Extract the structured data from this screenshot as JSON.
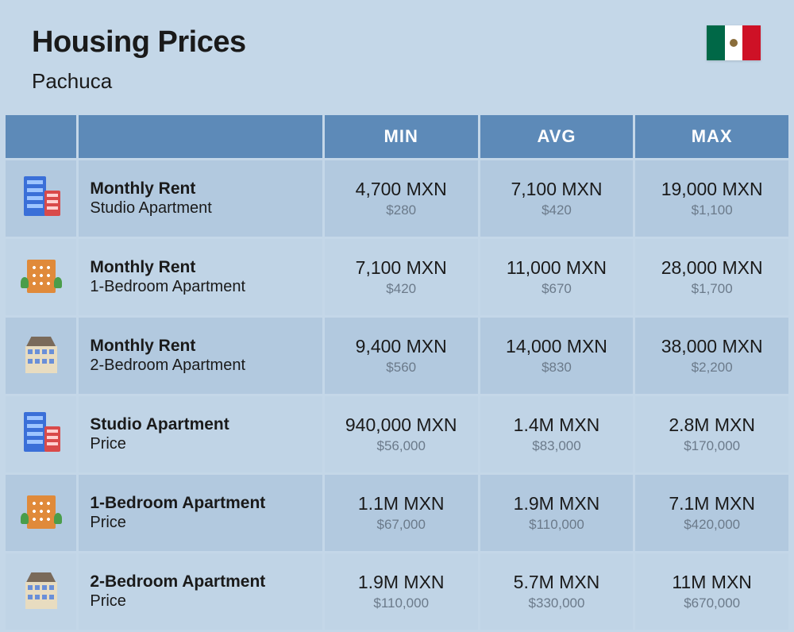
{
  "page": {
    "title": "Housing Prices",
    "subtitle": "Pachuca",
    "country_flag": "mexico",
    "background_color": "#c4d7e8"
  },
  "table": {
    "header_bg": "#5d8ab8",
    "header_text_color": "#ffffff",
    "row_bg_a": "#b2c9df",
    "row_bg_b": "#c0d4e6",
    "primary_text_color": "#1a1a1a",
    "secondary_text_color": "#6b7a8a",
    "col_headers": {
      "min": "MIN",
      "avg": "AVG",
      "max": "MAX"
    },
    "rows": [
      {
        "icon": "studio",
        "label_bold": "Monthly Rent",
        "label_sub": "Studio Apartment",
        "min": {
          "mxn": "4,700 MXN",
          "usd": "$280"
        },
        "avg": {
          "mxn": "7,100 MXN",
          "usd": "$420"
        },
        "max": {
          "mxn": "19,000 MXN",
          "usd": "$1,100"
        }
      },
      {
        "icon": "1br",
        "label_bold": "Monthly Rent",
        "label_sub": "1-Bedroom Apartment",
        "min": {
          "mxn": "7,100 MXN",
          "usd": "$420"
        },
        "avg": {
          "mxn": "11,000 MXN",
          "usd": "$670"
        },
        "max": {
          "mxn": "28,000 MXN",
          "usd": "$1,700"
        }
      },
      {
        "icon": "2br",
        "label_bold": "Monthly Rent",
        "label_sub": "2-Bedroom Apartment",
        "min": {
          "mxn": "9,400 MXN",
          "usd": "$560"
        },
        "avg": {
          "mxn": "14,000 MXN",
          "usd": "$830"
        },
        "max": {
          "mxn": "38,000 MXN",
          "usd": "$2,200"
        }
      },
      {
        "icon": "studio",
        "label_bold": "Studio Apartment",
        "label_sub": "Price",
        "min": {
          "mxn": "940,000 MXN",
          "usd": "$56,000"
        },
        "avg": {
          "mxn": "1.4M MXN",
          "usd": "$83,000"
        },
        "max": {
          "mxn": "2.8M MXN",
          "usd": "$170,000"
        }
      },
      {
        "icon": "1br",
        "label_bold": "1-Bedroom Apartment",
        "label_sub": "Price",
        "min": {
          "mxn": "1.1M MXN",
          "usd": "$67,000"
        },
        "avg": {
          "mxn": "1.9M MXN",
          "usd": "$110,000"
        },
        "max": {
          "mxn": "7.1M MXN",
          "usd": "$420,000"
        }
      },
      {
        "icon": "2br",
        "label_bold": "2-Bedroom Apartment",
        "label_sub": "Price",
        "min": {
          "mxn": "1.9M MXN",
          "usd": "$110,000"
        },
        "avg": {
          "mxn": "5.7M MXN",
          "usd": "$330,000"
        },
        "max": {
          "mxn": "11M MXN",
          "usd": "$670,000"
        }
      }
    ]
  }
}
